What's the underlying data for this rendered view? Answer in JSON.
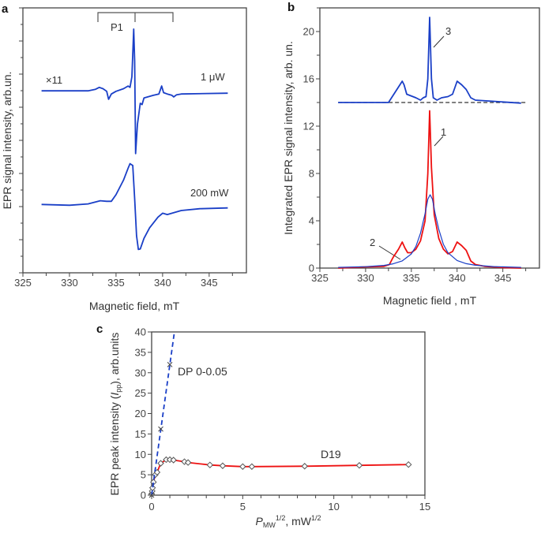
{
  "chart_data": [
    {
      "panel": "a",
      "type": "line",
      "xlabel": "Magnetic field, mT",
      "ylabel": "EPR signal intensity, arb.un.",
      "xlim": [
        325,
        349
      ],
      "ylim": [
        0,
        10
      ],
      "xticks": [
        "325",
        "330",
        "335",
        "340",
        "345"
      ],
      "annotations": {
        "scale": "×11",
        "p1": "P1"
      },
      "series": [
        {
          "name": "1 μW",
          "color": "#1a3fc7",
          "x": [
            327,
            332,
            332.8,
            333.2,
            333.6,
            334,
            334.2,
            334.5,
            335,
            335.8,
            336.3,
            336.5,
            336.7,
            336.9,
            337.0,
            337.1,
            337.3,
            337.6,
            337.8,
            338,
            339,
            339.6,
            339.9,
            340.1,
            340.5,
            341,
            341.2,
            341.5,
            342,
            347
          ],
          "y": [
            6.87,
            6.87,
            6.93,
            7.0,
            6.95,
            6.85,
            6.55,
            6.75,
            6.85,
            6.95,
            7.05,
            7.0,
            7.4,
            9.2,
            8.0,
            4.5,
            5.6,
            6.4,
            6.35,
            6.6,
            6.7,
            6.75,
            7.05,
            6.8,
            6.75,
            6.7,
            6.64,
            6.72,
            6.75,
            6.78
          ]
        },
        {
          "name": "200 mW",
          "color": "#1a3fc7",
          "x": [
            327,
            330,
            332,
            333.3,
            334,
            334.5,
            335,
            335.8,
            336.3,
            336.5,
            336.8,
            337.0,
            337.2,
            337.4,
            337.6,
            338,
            338.6,
            339.5,
            340,
            340.5,
            342,
            344,
            347
          ],
          "y": [
            2.58,
            2.55,
            2.6,
            2.72,
            2.7,
            2.7,
            2.95,
            3.5,
            3.95,
            4.12,
            4.05,
            2.8,
            1.4,
            0.88,
            0.9,
            1.3,
            1.7,
            2.1,
            2.25,
            2.2,
            2.35,
            2.42,
            2.45
          ]
        }
      ]
    },
    {
      "panel": "b",
      "type": "line",
      "xlabel": "Magnetic field , mT",
      "ylabel": "Integrated EPR signal intensity, arb. un.",
      "xlim": [
        325,
        349
      ],
      "ylim": [
        0,
        22
      ],
      "xticks": [
        "325",
        "330",
        "335",
        "340",
        "345"
      ],
      "yticks": [
        "0",
        "4",
        "8",
        "12",
        "16",
        "20"
      ],
      "baseline": 14,
      "series": [
        {
          "name": "3",
          "color": "#1a3fc7",
          "x": [
            327,
            332.5,
            333,
            333.5,
            334,
            334.2,
            334.5,
            335.5,
            336,
            336.3,
            336.6,
            336.8,
            337.0,
            337.2,
            337.4,
            337.8,
            338.3,
            339,
            339.5,
            340,
            340.5,
            341,
            341.5,
            342,
            344,
            345,
            347
          ],
          "y": [
            14,
            14,
            14.6,
            15.2,
            15.8,
            15.5,
            14.7,
            14.4,
            14.2,
            14.4,
            14.5,
            16,
            21.2,
            16,
            14.4,
            14.2,
            14.4,
            14.5,
            14.7,
            15.8,
            15.5,
            15.1,
            14.4,
            14.2,
            14.1,
            14.05,
            13.95
          ]
        },
        {
          "name": "1",
          "color": "#ee1111",
          "x": [
            327,
            330,
            332,
            332.6,
            333,
            333.6,
            334,
            334.3,
            334.6,
            335,
            335.5,
            336,
            336.5,
            336.8,
            337.0,
            337.2,
            337.5,
            338,
            338.5,
            339,
            339.5,
            340,
            340.5,
            341,
            341.5,
            342,
            343,
            345,
            347
          ],
          "y": [
            0,
            0.1,
            0.15,
            0.3,
            0.9,
            1.6,
            2.2,
            1.7,
            1.3,
            1.3,
            1.6,
            2.3,
            4,
            8,
            13.3,
            8.5,
            4.5,
            2.5,
            1.6,
            1.2,
            1.4,
            2.2,
            1.9,
            1.5,
            0.6,
            0.3,
            0.15,
            0.05,
            0
          ]
        },
        {
          "name": "2",
          "color": "#1a3fc7",
          "x": [
            327,
            330,
            332,
            333,
            334,
            335,
            335.5,
            336,
            336.5,
            336.8,
            337.05,
            337.3,
            337.6,
            338,
            338.5,
            339,
            340,
            341,
            342,
            344,
            347
          ],
          "y": [
            0.06,
            0.12,
            0.23,
            0.36,
            0.61,
            1.19,
            1.83,
            2.95,
            4.6,
            5.83,
            6.2,
            5.83,
            4.6,
            3.27,
            2.01,
            1.29,
            0.64,
            0.37,
            0.24,
            0.13,
            0.06
          ]
        }
      ]
    },
    {
      "panel": "c",
      "type": "scatter",
      "xlabel": {
        "p": "P",
        "sub": "MW",
        "sup": "1/2",
        "rest": ", mW",
        "sup2": "1/2"
      },
      "ylabel": {
        "pre": "EPR peak intensity (",
        "i": "I",
        "sub": "pp",
        "post": "), arb.units"
      },
      "xlim": [
        0,
        15
      ],
      "ylim": [
        0,
        40
      ],
      "xticks": [
        "0",
        "5",
        "10",
        "15"
      ],
      "yticks": [
        "0",
        "5",
        "10",
        "15",
        "20",
        "25",
        "30",
        "35",
        "40"
      ],
      "series": [
        {
          "name": "D19",
          "color": "#ee1111",
          "x": [
            0,
            0.03,
            0.05,
            0.1,
            0.2,
            0.3,
            0.5,
            0.8,
            1,
            1.2,
            1.8,
            2,
            3.2,
            3.9,
            5,
            5.5,
            8.4,
            11.4,
            14.1
          ],
          "y": [
            0.3,
            1,
            1.8,
            3.2,
            5,
            5.6,
            7.8,
            8.7,
            8.7,
            8.6,
            8.2,
            8.0,
            7.4,
            7.2,
            7.0,
            7.0,
            7.1,
            7.3,
            7.5
          ]
        },
        {
          "name": "DP 0-0.05",
          "color": "#1a3fc7",
          "x": [
            0,
            0.5,
            1
          ],
          "y": [
            0,
            16.2,
            32
          ],
          "fit_end": [
            1.25,
            40
          ]
        }
      ]
    }
  ]
}
